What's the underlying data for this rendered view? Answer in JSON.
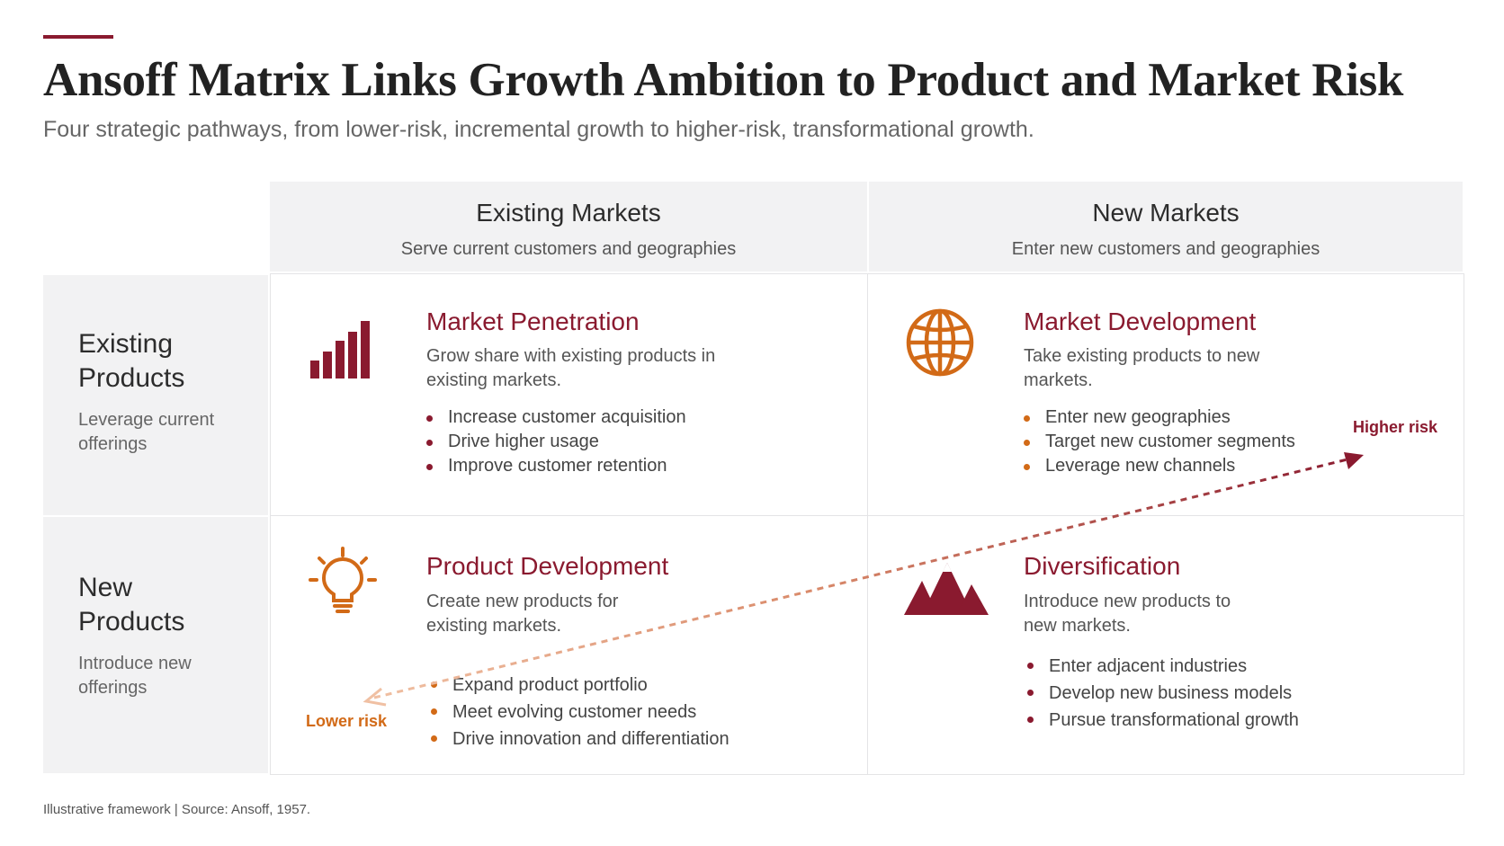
{
  "header": {
    "title": "Ansoff Matrix Links Growth Ambition to Product and Market Risk",
    "subtitle": "Four strategic pathways, from lower-risk, incremental growth to higher-risk, transformational growth."
  },
  "columns": [
    {
      "heading": "Existing Markets",
      "sub": "Serve current customers and geographies"
    },
    {
      "heading": "New Markets",
      "sub": "Enter new customers and geographies"
    }
  ],
  "rows": [
    {
      "heading": "Existing Products",
      "sub": "Leverage current offerings"
    },
    {
      "heading": "New Products",
      "sub": "Introduce new offerings"
    }
  ],
  "quadrants": {
    "penetration": {
      "icon": "bar-chart-icon",
      "title": "Market Penetration",
      "desc": "Grow share with existing products in existing markets.",
      "bullets": [
        "Increase customer acquisition",
        "Drive higher usage",
        "Improve customer retention"
      ]
    },
    "market_dev": {
      "icon": "globe-icon",
      "title": "Market Development",
      "desc": "Take existing products to new markets.",
      "bullets": [
        "Enter new geographies",
        "Target new customer segments",
        "Leverage new channels"
      ]
    },
    "product_dev": {
      "icon": "lightbulb-icon",
      "title": "Product Development",
      "desc": "Create new products for existing markets.",
      "bullets": [
        "Expand product portfolio",
        "Meet evolving customer needs",
        "Drive innovation and differentiation"
      ]
    },
    "diversification": {
      "icon": "mountains-icon",
      "title": "Diversification",
      "desc": "Introduce new products to new markets.",
      "bullets": [
        "Enter adjacent industries",
        "Develop new business models",
        "Pursue transformational growth"
      ]
    }
  },
  "risk": {
    "high_label": "Higher risk",
    "low_label": "Lower risk"
  },
  "footer": "Illustrative framework | Source: Ansoff, 1957.",
  "colors": {
    "maroon": "#8a1a2f",
    "orange": "#d26a17",
    "header_bg": "#f2f2f3"
  }
}
